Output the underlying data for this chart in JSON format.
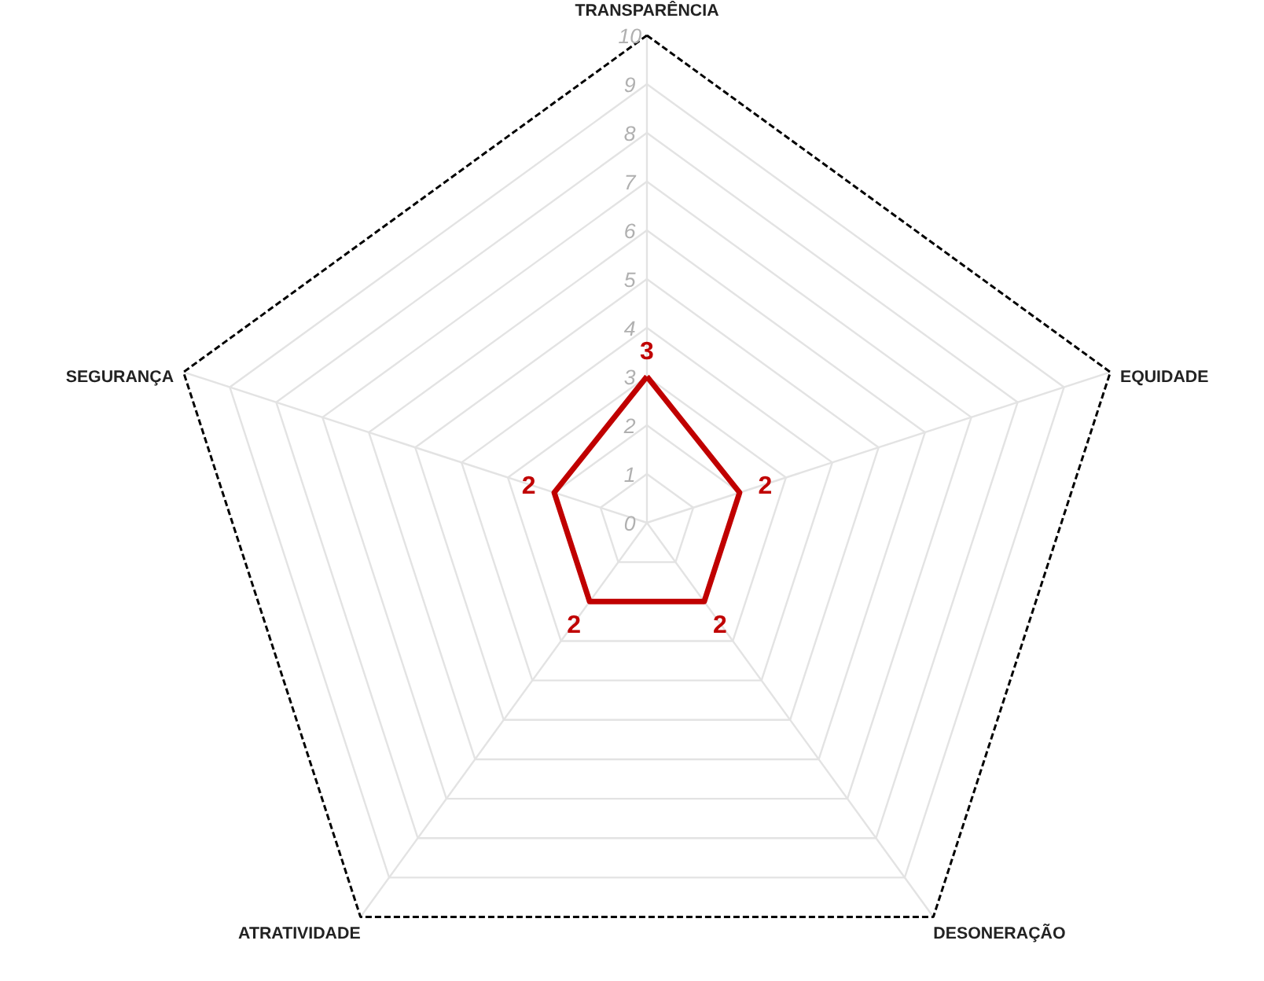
{
  "chart_data": {
    "type": "radar",
    "categories": [
      "TRANSPARÊNCIA",
      "EQUIDADE",
      "DESONERAÇÃO",
      "ATRATIVIDADE",
      "SEGURANÇA"
    ],
    "series": [
      {
        "color": "#c00000",
        "values": [
          3,
          2,
          2,
          2,
          2
        ]
      }
    ],
    "ylim": [
      0,
      10
    ],
    "yticks": [
      0,
      1,
      2,
      3,
      4,
      5,
      6,
      7,
      8,
      9,
      10
    ],
    "data_labels": true,
    "grid": true,
    "marker": "none",
    "line_style": "solid"
  }
}
